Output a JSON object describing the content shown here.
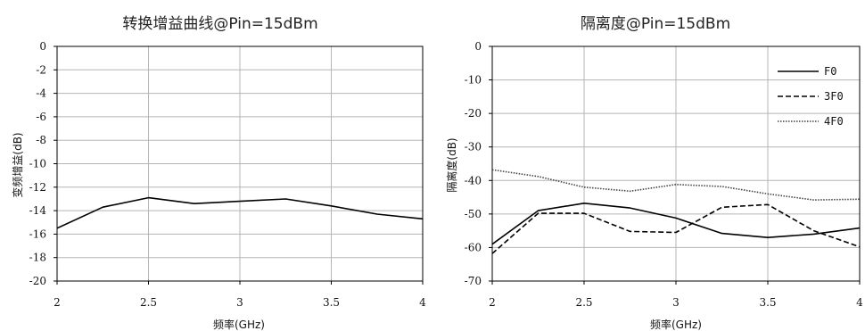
{
  "chart_data": [
    {
      "type": "line",
      "title": "转换增益曲线@Pin=15dBm",
      "xlabel": "频率(GHz)",
      "ylabel": "变频增益(dB)",
      "xlim": [
        2,
        4
      ],
      "ylim": [
        -20,
        0
      ],
      "xticks": [
        "2",
        "2.5",
        "3",
        "3.5",
        "4"
      ],
      "xtick_values": [
        2,
        2.5,
        3,
        3.5,
        4
      ],
      "yticks": [
        "0",
        "-2",
        "-4",
        "-6",
        "-8",
        "-10",
        "-12",
        "-14",
        "-16",
        "-18",
        "-20"
      ],
      "ytick_values": [
        0,
        -2,
        -4,
        -6,
        -8,
        -10,
        -12,
        -14,
        -16,
        -18,
        -20
      ],
      "grid": true,
      "series": [
        {
          "x": [
            2,
            2.25,
            2.5,
            2.75,
            3,
            3.25,
            3.5,
            3.75,
            4
          ],
          "values": [
            -15.5,
            -13.7,
            -12.9,
            -13.4,
            -13.2,
            -13.0,
            -13.6,
            -14.3,
            -14.7
          ],
          "style": "solid",
          "color": "#000000"
        }
      ]
    },
    {
      "type": "line",
      "title": "隔离度@Pin=15dBm",
      "xlabel": "频率(GHz)",
      "ylabel": "隔离度(dB)",
      "xlim": [
        2,
        4
      ],
      "ylim": [
        -70,
        0
      ],
      "xticks": [
        "2",
        "2.5",
        "3",
        "3.5",
        "4"
      ],
      "xtick_values": [
        2,
        2.5,
        3,
        3.5,
        4
      ],
      "yticks": [
        "0",
        "-10",
        "-20",
        "-30",
        "-40",
        "-50",
        "-60",
        "-70"
      ],
      "ytick_values": [
        0,
        -10,
        -20,
        -30,
        -40,
        -50,
        -60,
        -70
      ],
      "grid": true,
      "legend": "top-right",
      "series": [
        {
          "name": "F0",
          "x": [
            2,
            2.25,
            2.5,
            2.75,
            3,
            3.25,
            3.5,
            3.75,
            4
          ],
          "values": [
            -59.0,
            -49.0,
            -46.8,
            -48.2,
            -51.2,
            -55.8,
            -57.0,
            -56.0,
            -54.2
          ],
          "style": "solid",
          "color": "#000000"
        },
        {
          "name": "3F0",
          "x": [
            2,
            2.25,
            2.5,
            2.75,
            3,
            3.25,
            3.5,
            3.75,
            4
          ],
          "values": [
            -61.8,
            -49.8,
            -49.8,
            -55.2,
            -55.5,
            -48.0,
            -47.2,
            -55.0,
            -59.8
          ],
          "style": "dashed",
          "color": "#000000"
        },
        {
          "name": "4F0",
          "x": [
            2,
            2.25,
            2.5,
            2.75,
            3,
            3.25,
            3.5,
            3.75,
            4
          ],
          "values": [
            -36.8,
            -38.8,
            -42.0,
            -43.2,
            -41.2,
            -41.8,
            -44.0,
            -45.8,
            -45.6
          ],
          "style": "dotted",
          "color": "#444444"
        }
      ]
    }
  ]
}
